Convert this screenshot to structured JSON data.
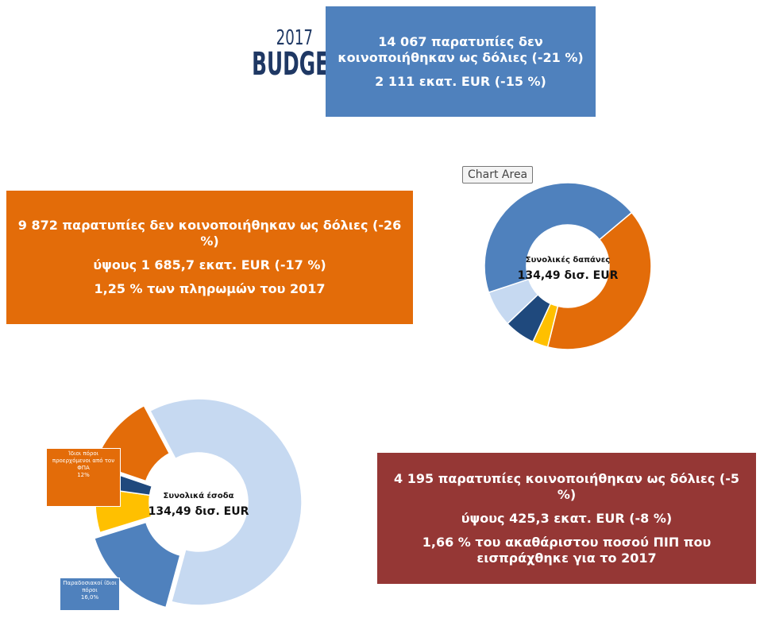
{
  "logo": {
    "year": "2017",
    "word": "BUDGET"
  },
  "boxes": [
    {
      "lines": [
        "14 067 παρατυπίες δεν κοινοποιήθηκαν ως δόλιες (-21 %)",
        "2 111 εκατ. EUR (-15 %)"
      ]
    },
    {
      "lines": [
        "9 872 παρατυπίες δεν κοινοποιήθηκαν ως δόλιες (-26 %)",
        "ύψους 1 685,7 εκατ. EUR (-17 %)",
        "1,25 % των πληρωμών του 2017"
      ]
    },
    {
      "lines": [
        "4 195 παρατυπίες κοινοποιήθηκαν ως δόλιες (-5 %)",
        "ύψους 425,3 εκατ. EUR (-8 %)",
        "1,66 % του ακαθάριστου ποσού ΠΙΠ που εισπράχθηκε για το 2017"
      ]
    }
  ],
  "tooltip": "Chart Area",
  "chart_data": [
    {
      "type": "pie",
      "center_label": [
        "Συνολικές δαπάνες",
        "134,49 δισ. EUR"
      ],
      "categories": [
        null,
        null,
        null,
        null,
        null
      ],
      "values": [
        40,
        3,
        6,
        7,
        44
      ],
      "colors": [
        "#e36c09",
        "#ffc000",
        "#1f497d",
        "#c6d9f1",
        "#4f81bd"
      ]
    },
    {
      "type": "pie",
      "center_label": [
        "Συνολικά έσοδα",
        "134,49 δισ. EUR"
      ],
      "categories": [
        null,
        "Παραδοσιακοί ίδιοι πόροι",
        null,
        null,
        "Ίδιοι πόροι προερχόμενοι από τον ΦΠΑ"
      ],
      "values": [
        62,
        16,
        7,
        3,
        12
      ],
      "value_labels": [
        null,
        "16,0%",
        null,
        null,
        "12%"
      ],
      "colors": [
        "#c6d9f1",
        "#4f81bd",
        "#ffc000",
        "#1f497d",
        "#e36c09"
      ]
    }
  ]
}
